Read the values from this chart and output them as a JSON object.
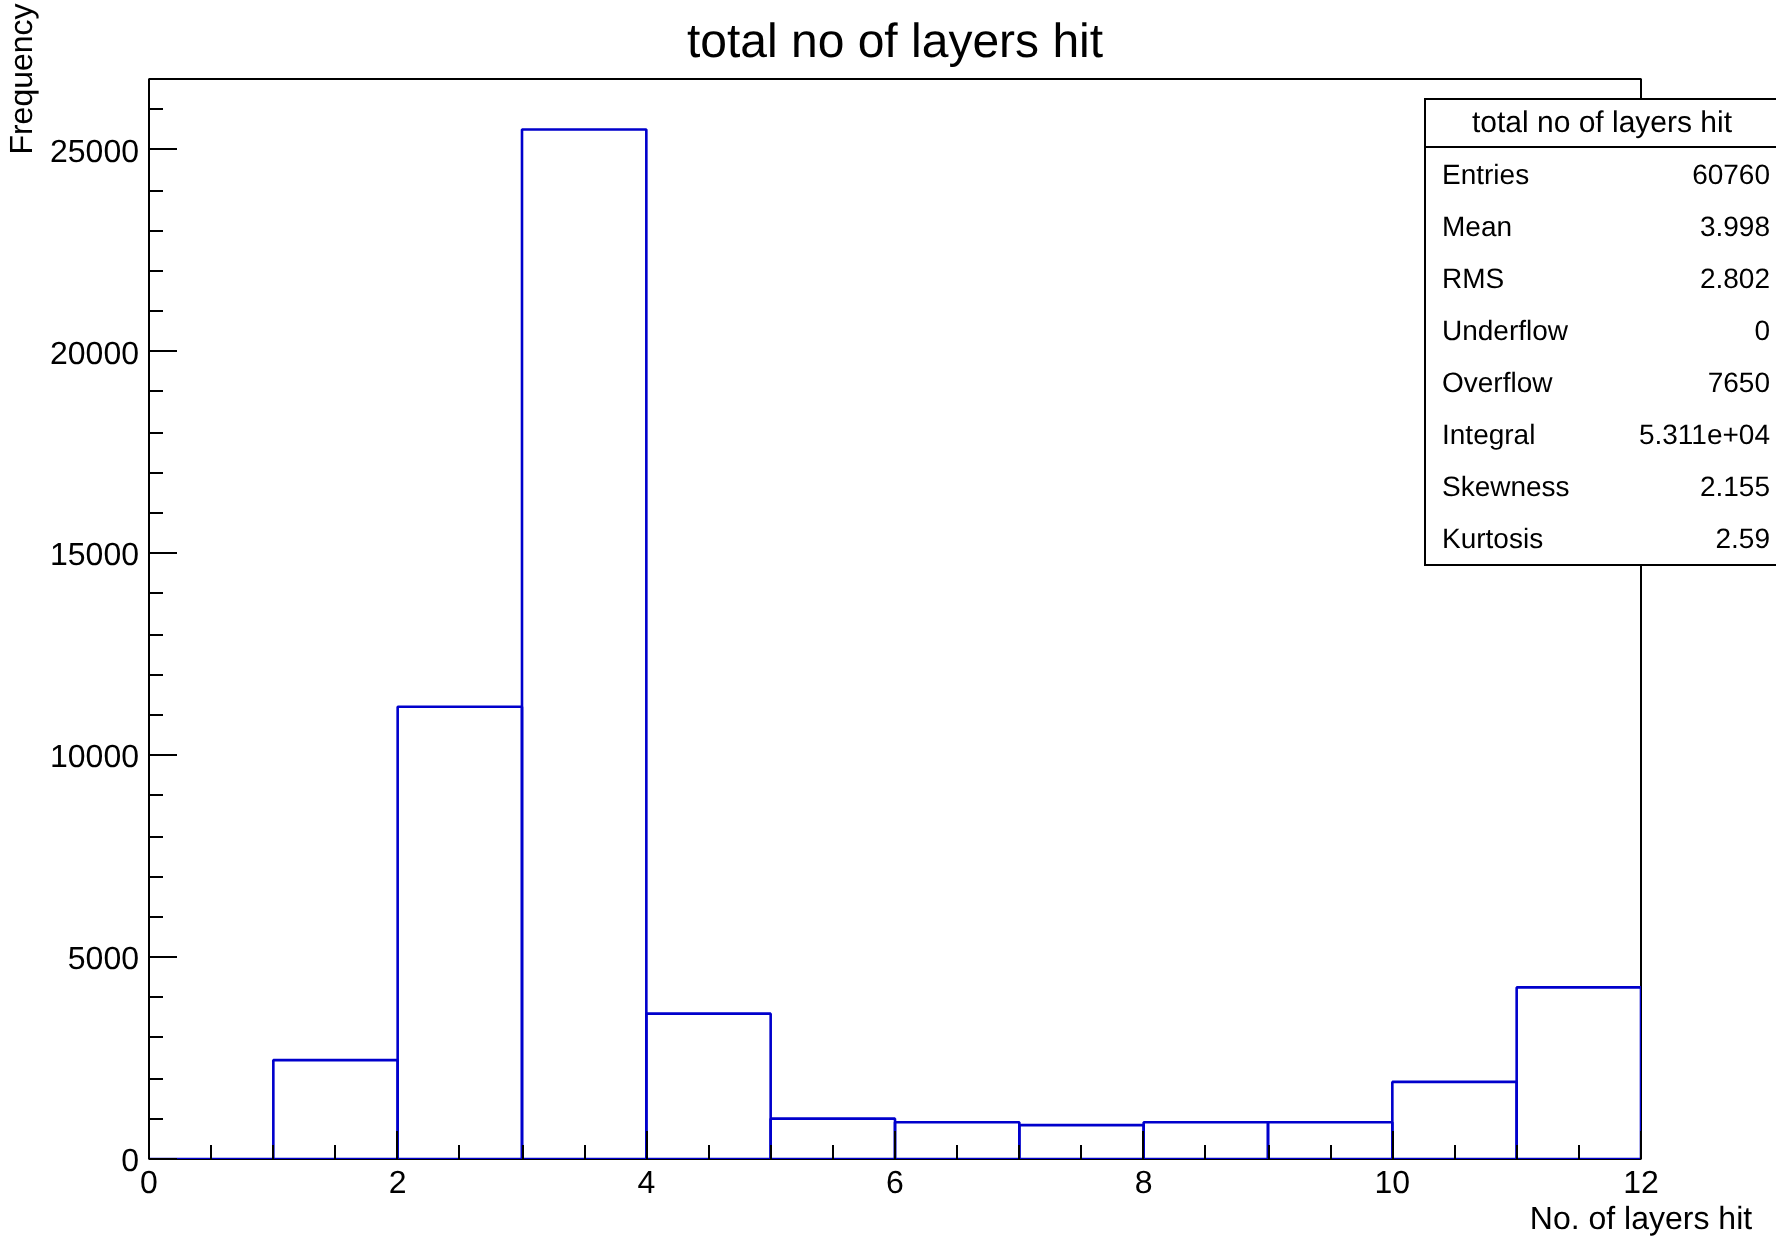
{
  "chart_data": {
    "type": "histogram",
    "title": "total no of layers hit",
    "xlabel": "No. of layers hit",
    "ylabel": "Frequency",
    "bins": [
      0,
      1,
      2,
      3,
      4,
      5,
      6,
      7,
      8,
      9,
      10,
      11,
      12
    ],
    "values": [
      0,
      2450,
      11200,
      25500,
      3600,
      1000,
      910,
      840,
      910,
      910,
      1910,
      4250
    ],
    "color": "#0000cc",
    "xlim": [
      0,
      12
    ],
    "xticks": [
      0,
      2,
      4,
      6,
      8,
      10,
      12
    ],
    "ylim": [
      0,
      26750
    ],
    "yticks": [
      0,
      5000,
      10000,
      15000,
      20000,
      25000
    ],
    "grid": false,
    "annotations": [
      "total no of layers hit",
      "Entries",
      "60760",
      "Mean",
      "3.998",
      "RMS",
      "2.802",
      "Underflow",
      "0",
      "Overflow",
      "7650",
      "Integral",
      "5.311e+04",
      "Skewness",
      "2.155",
      "Kurtosis",
      "2.59"
    ]
  }
}
